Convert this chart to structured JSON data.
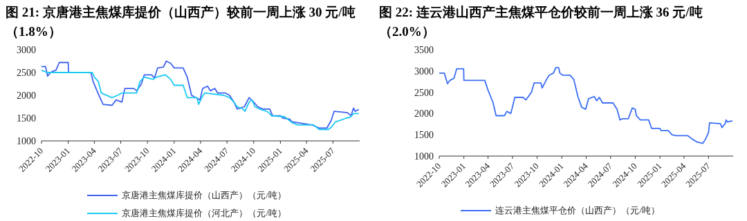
{
  "chart_data": [
    {
      "type": "line",
      "title": "图 21: 京唐港主焦煤库提价（山西产）较前一周上涨 30 元/吨（1.8%）",
      "xlim": [
        "2022-10-01",
        "2025-10-01"
      ],
      "xticks": [
        "2022-10",
        "2023-01",
        "2023-04",
        "2023-07",
        "2023-10",
        "2024-01",
        "2024-04",
        "2024-07",
        "2024-10",
        "2025-01",
        "2025-04",
        "2025-07"
      ],
      "ylim": [
        1000,
        3000
      ],
      "yticks": [
        1000,
        1500,
        2000,
        2500,
        3000
      ],
      "grid": false,
      "legend": "bottom",
      "series": [
        {
          "name": "京唐港主焦煤库提价（山西产）（元/吨）",
          "color": "#3f62f0",
          "x": [
            "2022-10-01",
            "2022-10-15",
            "2022-10-22",
            "2022-11-01",
            "2022-11-10",
            "2022-11-20",
            "2022-12-01",
            "2023-01-01",
            "2023-01-02",
            "2023-03-20",
            "2023-03-28",
            "2023-04-10",
            "2023-05-01",
            "2023-06-01",
            "2023-06-15",
            "2023-07-05",
            "2023-07-15",
            "2023-08-15",
            "2023-08-25",
            "2023-09-10",
            "2023-09-20",
            "2023-10-15",
            "2023-10-25",
            "2023-11-05",
            "2023-11-25",
            "2023-12-05",
            "2023-12-20",
            "2024-01-01",
            "2024-02-01",
            "2024-02-15",
            "2024-03-01",
            "2024-03-15",
            "2024-03-30",
            "2024-04-08",
            "2024-04-25",
            "2024-05-05",
            "2024-05-20",
            "2024-05-30",
            "2024-06-25",
            "2024-07-10",
            "2024-07-25",
            "2024-08-05",
            "2024-08-30",
            "2024-09-15",
            "2024-10-01",
            "2024-10-15",
            "2024-11-01",
            "2024-11-25",
            "2024-12-05",
            "2025-01-01",
            "2025-01-10",
            "2025-02-01",
            "2025-02-10",
            "2025-03-01",
            "2025-04-20",
            "2025-05-15",
            "2025-06-10",
            "2025-06-25",
            "2025-07-05",
            "2025-08-20",
            "2025-09-01",
            "2025-09-10",
            "2025-09-15",
            "2025-09-28"
          ],
          "values": [
            2630,
            2630,
            2420,
            2500,
            2530,
            2550,
            2720,
            2720,
            2500,
            2500,
            2300,
            2100,
            1800,
            1780,
            1900,
            1850,
            2150,
            2150,
            2100,
            2250,
            2450,
            2450,
            2380,
            2600,
            2620,
            2750,
            2700,
            2600,
            2600,
            2400,
            2000,
            1950,
            1900,
            2150,
            2200,
            2100,
            2150,
            2050,
            2050,
            2000,
            1850,
            1700,
            1750,
            1950,
            1850,
            1750,
            1700,
            1700,
            1550,
            1550,
            1500,
            1480,
            1420,
            1400,
            1350,
            1280,
            1280,
            1450,
            1650,
            1620,
            1550,
            1720,
            1650,
            1690
          ]
        },
        {
          "name": "京唐港主焦煤库提价（河北产）（元/吨）",
          "color": "#1cc8f2",
          "x": [
            "2022-10-01",
            "2022-10-20",
            "2023-03-25",
            "2023-04-01",
            "2023-04-15",
            "2023-04-25",
            "2023-06-01",
            "2023-06-20",
            "2023-07-05",
            "2023-08-25",
            "2023-09-05",
            "2023-09-20",
            "2023-10-20",
            "2023-11-01",
            "2023-12-01",
            "2023-12-20",
            "2024-01-01",
            "2024-02-01",
            "2024-02-15",
            "2024-03-20",
            "2024-03-25",
            "2024-04-05",
            "2024-04-15",
            "2024-06-20",
            "2024-07-10",
            "2024-07-25",
            "2024-08-05",
            "2024-08-25",
            "2024-09-01",
            "2024-09-15",
            "2024-09-25",
            "2024-10-05",
            "2024-10-20",
            "2024-11-15",
            "2024-11-25",
            "2024-12-01",
            "2025-01-15",
            "2025-02-10",
            "2025-03-01",
            "2025-04-25",
            "2025-05-15",
            "2025-06-15",
            "2025-06-25",
            "2025-07-10",
            "2025-07-25",
            "2025-08-15",
            "2025-08-30",
            "2025-09-10",
            "2025-09-28"
          ],
          "values": [
            2550,
            2500,
            2500,
            2400,
            2300,
            2050,
            1950,
            2000,
            2050,
            2050,
            2300,
            2400,
            2350,
            2400,
            2450,
            2350,
            2220,
            2220,
            1950,
            1950,
            1800,
            1950,
            2050,
            2000,
            1950,
            1850,
            1750,
            1700,
            1650,
            1850,
            1900,
            1750,
            1700,
            1650,
            1600,
            1550,
            1530,
            1400,
            1350,
            1350,
            1250,
            1250,
            1300,
            1420,
            1450,
            1500,
            1520,
            1600,
            1600
          ]
        }
      ]
    },
    {
      "type": "line",
      "title": "图 22: 连云港山西产主焦煤平仓价较前一周上涨 36 元/吨（2.0%）",
      "xlim": [
        "2022-10-01",
        "2025-10-01"
      ],
      "xticks": [
        "2022-10",
        "2023-01",
        "2023-04",
        "2023-07",
        "2023-10",
        "2024-01",
        "2024-04",
        "2024-07",
        "2024-10",
        "2025-01",
        "2025-04",
        "2025-07"
      ],
      "ylim": [
        1000,
        3500
      ],
      "yticks": [
        1000,
        1500,
        2000,
        2500,
        3000,
        3500
      ],
      "grid": false,
      "legend": "bottom",
      "series": [
        {
          "name": "连云港主焦煤平仓价（山西产）（元/吨）",
          "color": "#3b6ef5",
          "x": [
            "2022-10-01",
            "2022-10-20",
            "2022-10-25",
            "2022-11-01",
            "2022-11-10",
            "2022-11-25",
            "2022-12-05",
            "2022-12-31",
            "2023-01-01",
            "2023-03-20",
            "2023-04-01",
            "2023-04-20",
            "2023-05-01",
            "2023-06-01",
            "2023-06-10",
            "2023-06-25",
            "2023-07-10",
            "2023-08-10",
            "2023-08-20",
            "2023-09-10",
            "2023-09-20",
            "2023-10-15",
            "2023-10-20",
            "2023-11-05",
            "2023-11-15",
            "2023-12-01",
            "2023-12-10",
            "2023-12-20",
            "2023-12-25",
            "2024-01-05",
            "2024-02-01",
            "2024-02-15",
            "2024-03-01",
            "2024-03-15",
            "2024-03-30",
            "2024-04-10",
            "2024-05-01",
            "2024-05-10",
            "2024-05-20",
            "2024-06-01",
            "2024-07-10",
            "2024-07-25",
            "2024-08-05",
            "2024-08-15",
            "2024-09-05",
            "2024-09-20",
            "2024-10-01",
            "2024-10-05",
            "2024-10-20",
            "2024-11-20",
            "2024-12-01",
            "2025-01-01",
            "2025-01-05",
            "2025-02-01",
            "2025-02-15",
            "2025-03-01",
            "2025-04-15",
            "2025-05-01",
            "2025-05-20",
            "2025-06-10",
            "2025-06-20",
            "2025-07-01",
            "2025-07-05",
            "2025-08-15",
            "2025-08-20",
            "2025-09-01",
            "2025-09-05",
            "2025-09-10",
            "2025-09-28"
          ],
          "values": [
            2950,
            2950,
            2850,
            2700,
            2780,
            2830,
            3050,
            3050,
            2780,
            2780,
            2550,
            2250,
            1950,
            1950,
            2050,
            2000,
            2380,
            2380,
            2320,
            2500,
            2720,
            2720,
            2600,
            2800,
            2900,
            2950,
            3080,
            3080,
            2950,
            2900,
            2900,
            2800,
            2400,
            2150,
            2100,
            2350,
            2400,
            2300,
            2380,
            2250,
            2250,
            2100,
            1850,
            1880,
            1880,
            2130,
            2100,
            1950,
            1850,
            1850,
            1650,
            1650,
            1600,
            1600,
            1500,
            1480,
            1480,
            1400,
            1330,
            1300,
            1400,
            1550,
            1780,
            1760,
            1670,
            1760,
            1850,
            1800,
            1830
          ]
        }
      ]
    }
  ]
}
